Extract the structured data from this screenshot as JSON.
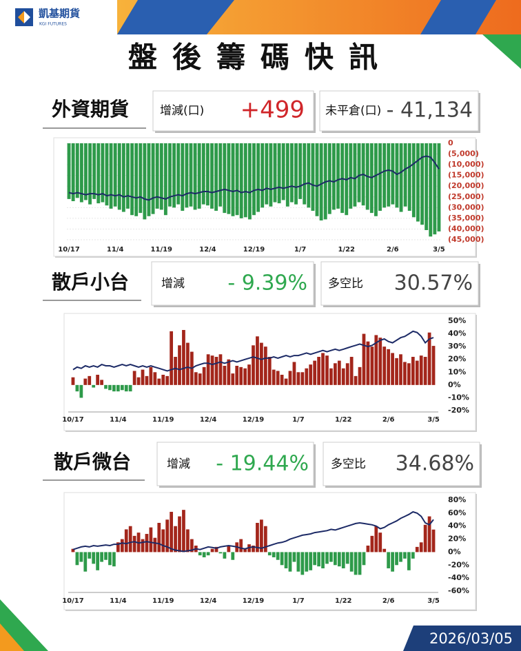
{
  "header": {
    "logo": "凱基期貨",
    "logo_en": "KGI FUTURES",
    "title": "盤後籌碼快訊",
    "date": "2026/03/05"
  },
  "sections": [
    {
      "label": "外資期貨",
      "change_label": "增減(口)",
      "change": "+499",
      "second_label": "未平倉(口)",
      "second": "- 41,134"
    },
    {
      "label": "散戶小台",
      "change_label": "增減",
      "change": "- 9.39%",
      "second_label": "多空比",
      "second": "30.57%"
    },
    {
      "label": "散戶微台",
      "change_label": "增減",
      "change": "- 19.44%",
      "second_label": "多空比",
      "second": "34.68%"
    }
  ],
  "chart_data": [
    {
      "type": "bar",
      "tick_color": "#c0392b",
      "grid": true,
      "categories": [
        "10/17",
        null,
        null,
        null,
        null,
        null,
        null,
        null,
        null,
        null,
        null,
        "11/4",
        null,
        null,
        null,
        null,
        null,
        null,
        null,
        null,
        null,
        null,
        "11/19",
        null,
        null,
        null,
        null,
        null,
        null,
        null,
        null,
        null,
        null,
        "12/4",
        null,
        null,
        null,
        null,
        null,
        null,
        null,
        null,
        null,
        null,
        "12/19",
        null,
        null,
        null,
        null,
        null,
        null,
        null,
        null,
        null,
        null,
        "1/7",
        null,
        null,
        null,
        null,
        null,
        null,
        null,
        null,
        null,
        null,
        "1/22",
        null,
        null,
        null,
        null,
        null,
        null,
        null,
        null,
        null,
        null,
        "2/6",
        null,
        null,
        null,
        null,
        null,
        null,
        null,
        null,
        null,
        null,
        "3/5"
      ],
      "ylim": [
        -45000,
        0
      ],
      "yticks": [
        0,
        {
          "value": -5000,
          "label": "(5,000)"
        },
        {
          "value": -10000,
          "label": "(10,000)"
        },
        {
          "value": -15000,
          "label": "(15,000)"
        },
        {
          "value": -20000,
          "label": "(20,000)"
        },
        {
          "value": -25000,
          "label": "(25,000)"
        },
        {
          "value": -30000,
          "label": "(30,000)"
        },
        {
          "value": -35000,
          "label": "(35,000)"
        },
        {
          "value": -40000,
          "label": "(40,000)"
        },
        {
          "value": -45000,
          "label": "(45,000)"
        }
      ],
      "series": [
        {
          "type": "bar",
          "color": "#2e9a4a",
          "negative_color": "#2e9a4a",
          "values": [
            -26000,
            -27000,
            -25500,
            -27500,
            -26500,
            -28500,
            -26000,
            -28000,
            -27500,
            -29000,
            -30500,
            -29500,
            -31000,
            -32000,
            -30500,
            -33500,
            -34000,
            -32500,
            -35500,
            -34000,
            -33000,
            -30500,
            -31000,
            -33500,
            -29500,
            -30000,
            -28500,
            -31500,
            -30000,
            -29500,
            -31000,
            -30500,
            -28500,
            -29000,
            -30500,
            -31500,
            -29500,
            -32500,
            -33000,
            -34000,
            -33500,
            -35000,
            -34500,
            -35500,
            -33500,
            -32000,
            -30000,
            -28500,
            -29500,
            -27500,
            -28000,
            -26500,
            -29500,
            -27500,
            -28500,
            -26000,
            -28500,
            -30000,
            -31500,
            -34000,
            -36000,
            -35500,
            -33000,
            -31000,
            -30500,
            -32500,
            -33500,
            -30500,
            -29500,
            -27500,
            -29000,
            -31000,
            -32500,
            -34000,
            -31500,
            -30000,
            -29500,
            -28500,
            -30000,
            -32000,
            -29500,
            -31500,
            -34500,
            -36500,
            -38000,
            -40500,
            -43500,
            -42500,
            -41134
          ]
        },
        {
          "type": "line",
          "color": "#1c2a66",
          "values": [
            -23000,
            -23500,
            -23000,
            -23500,
            -24000,
            -23500,
            -23500,
            -24000,
            -23500,
            -24500,
            -24000,
            -24500,
            -24000,
            -25000,
            -24500,
            -25000,
            -25500,
            -25000,
            -26000,
            -26500,
            -25500,
            -25000,
            -25500,
            -26000,
            -25000,
            -24500,
            -24000,
            -24500,
            -23500,
            -23000,
            -23500,
            -23000,
            -22500,
            -22500,
            -23000,
            -22500,
            -22000,
            -21500,
            -22000,
            -22500,
            -22000,
            -23000,
            -22500,
            -23000,
            -22000,
            -21500,
            -22000,
            -21000,
            -21500,
            -21000,
            -20500,
            -21000,
            -20500,
            -20000,
            -20500,
            -20000,
            -19000,
            -18500,
            -19500,
            -20000,
            -19000,
            -18000,
            -17500,
            -18000,
            -17000,
            -16500,
            -17000,
            -16000,
            -16500,
            -15000,
            -14500,
            -15500,
            -16000,
            -15000,
            -14000,
            -13000,
            -12500,
            -13000,
            -14500,
            -13500,
            -12000,
            -11000,
            -9500,
            -8000,
            -6500,
            -6000,
            -6500,
            -9000,
            -12000
          ]
        }
      ]
    },
    {
      "type": "bar",
      "tick_color": "#222222",
      "grid": false,
      "categories": [
        "10/17",
        null,
        null,
        null,
        null,
        null,
        null,
        null,
        null,
        null,
        null,
        "11/4",
        null,
        null,
        null,
        null,
        null,
        null,
        null,
        null,
        null,
        null,
        "11/19",
        null,
        null,
        null,
        null,
        null,
        null,
        null,
        null,
        null,
        null,
        "12/4",
        null,
        null,
        null,
        null,
        null,
        null,
        null,
        null,
        null,
        null,
        "12/19",
        null,
        null,
        null,
        null,
        null,
        null,
        null,
        null,
        null,
        null,
        "1/7",
        null,
        null,
        null,
        null,
        null,
        null,
        null,
        null,
        null,
        null,
        "1/22",
        null,
        null,
        null,
        null,
        null,
        null,
        null,
        null,
        null,
        null,
        "2/6",
        null,
        null,
        null,
        null,
        null,
        null,
        null,
        null,
        null,
        null,
        "3/5"
      ],
      "ylim": [
        -20,
        50
      ],
      "yticks": [
        {
          "value": 50,
          "label": "50%"
        },
        {
          "value": 40,
          "label": "40%"
        },
        {
          "value": 30,
          "label": "30%"
        },
        {
          "value": 20,
          "label": "20%"
        },
        {
          "value": 10,
          "label": "10%"
        },
        {
          "value": 0,
          "label": "0%"
        },
        {
          "value": -10,
          "label": "-10%"
        },
        {
          "value": -20,
          "label": "-20%"
        }
      ],
      "series": [
        {
          "type": "bar",
          "color": "#a3261b",
          "negative_color": "#2e9a4a",
          "values": [
            6,
            -5,
            -10,
            5,
            7,
            -2,
            8,
            4,
            -3,
            -4,
            -5,
            -5,
            -4,
            -5,
            -5,
            11,
            6,
            12,
            7,
            14,
            10,
            5,
            8,
            7,
            42,
            22,
            31,
            43,
            33,
            26,
            10,
            9,
            14,
            24,
            23,
            22,
            24,
            15,
            20,
            9,
            15,
            14,
            13,
            16,
            31,
            38,
            33,
            30,
            22,
            12,
            11,
            8,
            5,
            11,
            18,
            10,
            10,
            13,
            16,
            19,
            22,
            25,
            23,
            13,
            17,
            19,
            13,
            17,
            22,
            7,
            14,
            40,
            34,
            30,
            39,
            37,
            30,
            28,
            25,
            21,
            24,
            18,
            17,
            22,
            19,
            23,
            22,
            41,
            30.57
          ]
        },
        {
          "type": "line",
          "color": "#1c2a66",
          "values": [
            12,
            14,
            13,
            15,
            14,
            15,
            14,
            16,
            15,
            15,
            14,
            15,
            16,
            15,
            16,
            15,
            14,
            15,
            14,
            15,
            14,
            13,
            12,
            11,
            12,
            13,
            12,
            13,
            14,
            13,
            15,
            16,
            17,
            17,
            16,
            17,
            18,
            17,
            18,
            19,
            18,
            19,
            20,
            21,
            22,
            21,
            20,
            21,
            21,
            22,
            21,
            22,
            23,
            22,
            23,
            23,
            24,
            25,
            24,
            25,
            26,
            27,
            26,
            27,
            28,
            27,
            28,
            29,
            30,
            31,
            32,
            31,
            30,
            31,
            33,
            35,
            36,
            34,
            33,
            35,
            37,
            38,
            40,
            42,
            41,
            38,
            33,
            36,
            37
          ]
        }
      ]
    },
    {
      "type": "bar",
      "tick_color": "#222222",
      "grid": false,
      "categories": [
        "10/17",
        null,
        null,
        null,
        null,
        null,
        null,
        null,
        null,
        null,
        null,
        "11/4",
        null,
        null,
        null,
        null,
        null,
        null,
        null,
        null,
        null,
        null,
        "11/19",
        null,
        null,
        null,
        null,
        null,
        null,
        null,
        null,
        null,
        null,
        "12/4",
        null,
        null,
        null,
        null,
        null,
        null,
        null,
        null,
        null,
        null,
        "12/19",
        null,
        null,
        null,
        null,
        null,
        null,
        null,
        null,
        null,
        null,
        "1/7",
        null,
        null,
        null,
        null,
        null,
        null,
        null,
        null,
        null,
        null,
        "1/22",
        null,
        null,
        null,
        null,
        null,
        null,
        null,
        null,
        null,
        null,
        "2/6",
        null,
        null,
        null,
        null,
        null,
        null,
        null,
        null,
        null,
        null,
        "3/5"
      ],
      "ylim": [
        -60,
        80
      ],
      "yticks": [
        {
          "value": 80,
          "label": "80%"
        },
        {
          "value": 60,
          "label": "60%"
        },
        {
          "value": 40,
          "label": "40%"
        },
        {
          "value": 20,
          "label": "20%"
        },
        {
          "value": 0,
          "label": "0%"
        },
        {
          "value": -20,
          "label": "-20%"
        },
        {
          "value": -40,
          "label": "-40%"
        },
        {
          "value": -60,
          "label": "-60%"
        }
      ],
      "series": [
        {
          "type": "bar",
          "color": "#a3261b",
          "negative_color": "#2e9a4a",
          "values": [
            5,
            -20,
            -15,
            -30,
            -10,
            -18,
            -28,
            -15,
            -12,
            -20,
            -22,
            15,
            20,
            35,
            40,
            25,
            30,
            20,
            28,
            38,
            22,
            45,
            35,
            50,
            62,
            40,
            55,
            65,
            35,
            20,
            10,
            -5,
            -8,
            -5,
            5,
            8,
            -2,
            -10,
            10,
            -12,
            15,
            20,
            5,
            12,
            10,
            45,
            50,
            40,
            -5,
            -8,
            -12,
            -20,
            -25,
            -30,
            -15,
            -30,
            -35,
            -30,
            -28,
            -20,
            -22,
            -25,
            -18,
            -15,
            -20,
            -22,
            -25,
            -18,
            -30,
            -35,
            -35,
            -20,
            10,
            25,
            40,
            30,
            5,
            -25,
            -30,
            -20,
            -15,
            -10,
            -28,
            -10,
            8,
            15,
            42,
            55,
            34.68
          ]
        },
        {
          "type": "line",
          "color": "#1c2a66",
          "values": [
            4,
            6,
            8,
            9,
            8,
            10,
            9,
            10,
            11,
            10,
            12,
            12,
            14,
            13,
            15,
            16,
            14,
            15,
            16,
            15,
            14,
            13,
            10,
            8,
            5,
            3,
            2,
            1,
            2,
            3,
            5,
            4,
            6,
            8,
            7,
            6,
            8,
            9,
            10,
            9,
            8,
            6,
            5,
            7,
            8,
            7,
            6,
            8,
            10,
            12,
            14,
            15,
            17,
            20,
            22,
            24,
            26,
            27,
            28,
            30,
            31,
            32,
            33,
            35,
            34,
            36,
            38,
            40,
            42,
            44,
            45,
            44,
            43,
            42,
            40,
            36,
            38,
            42,
            45,
            48,
            52,
            55,
            58,
            62,
            60,
            55,
            45,
            42,
            50
          ]
        }
      ]
    }
  ]
}
